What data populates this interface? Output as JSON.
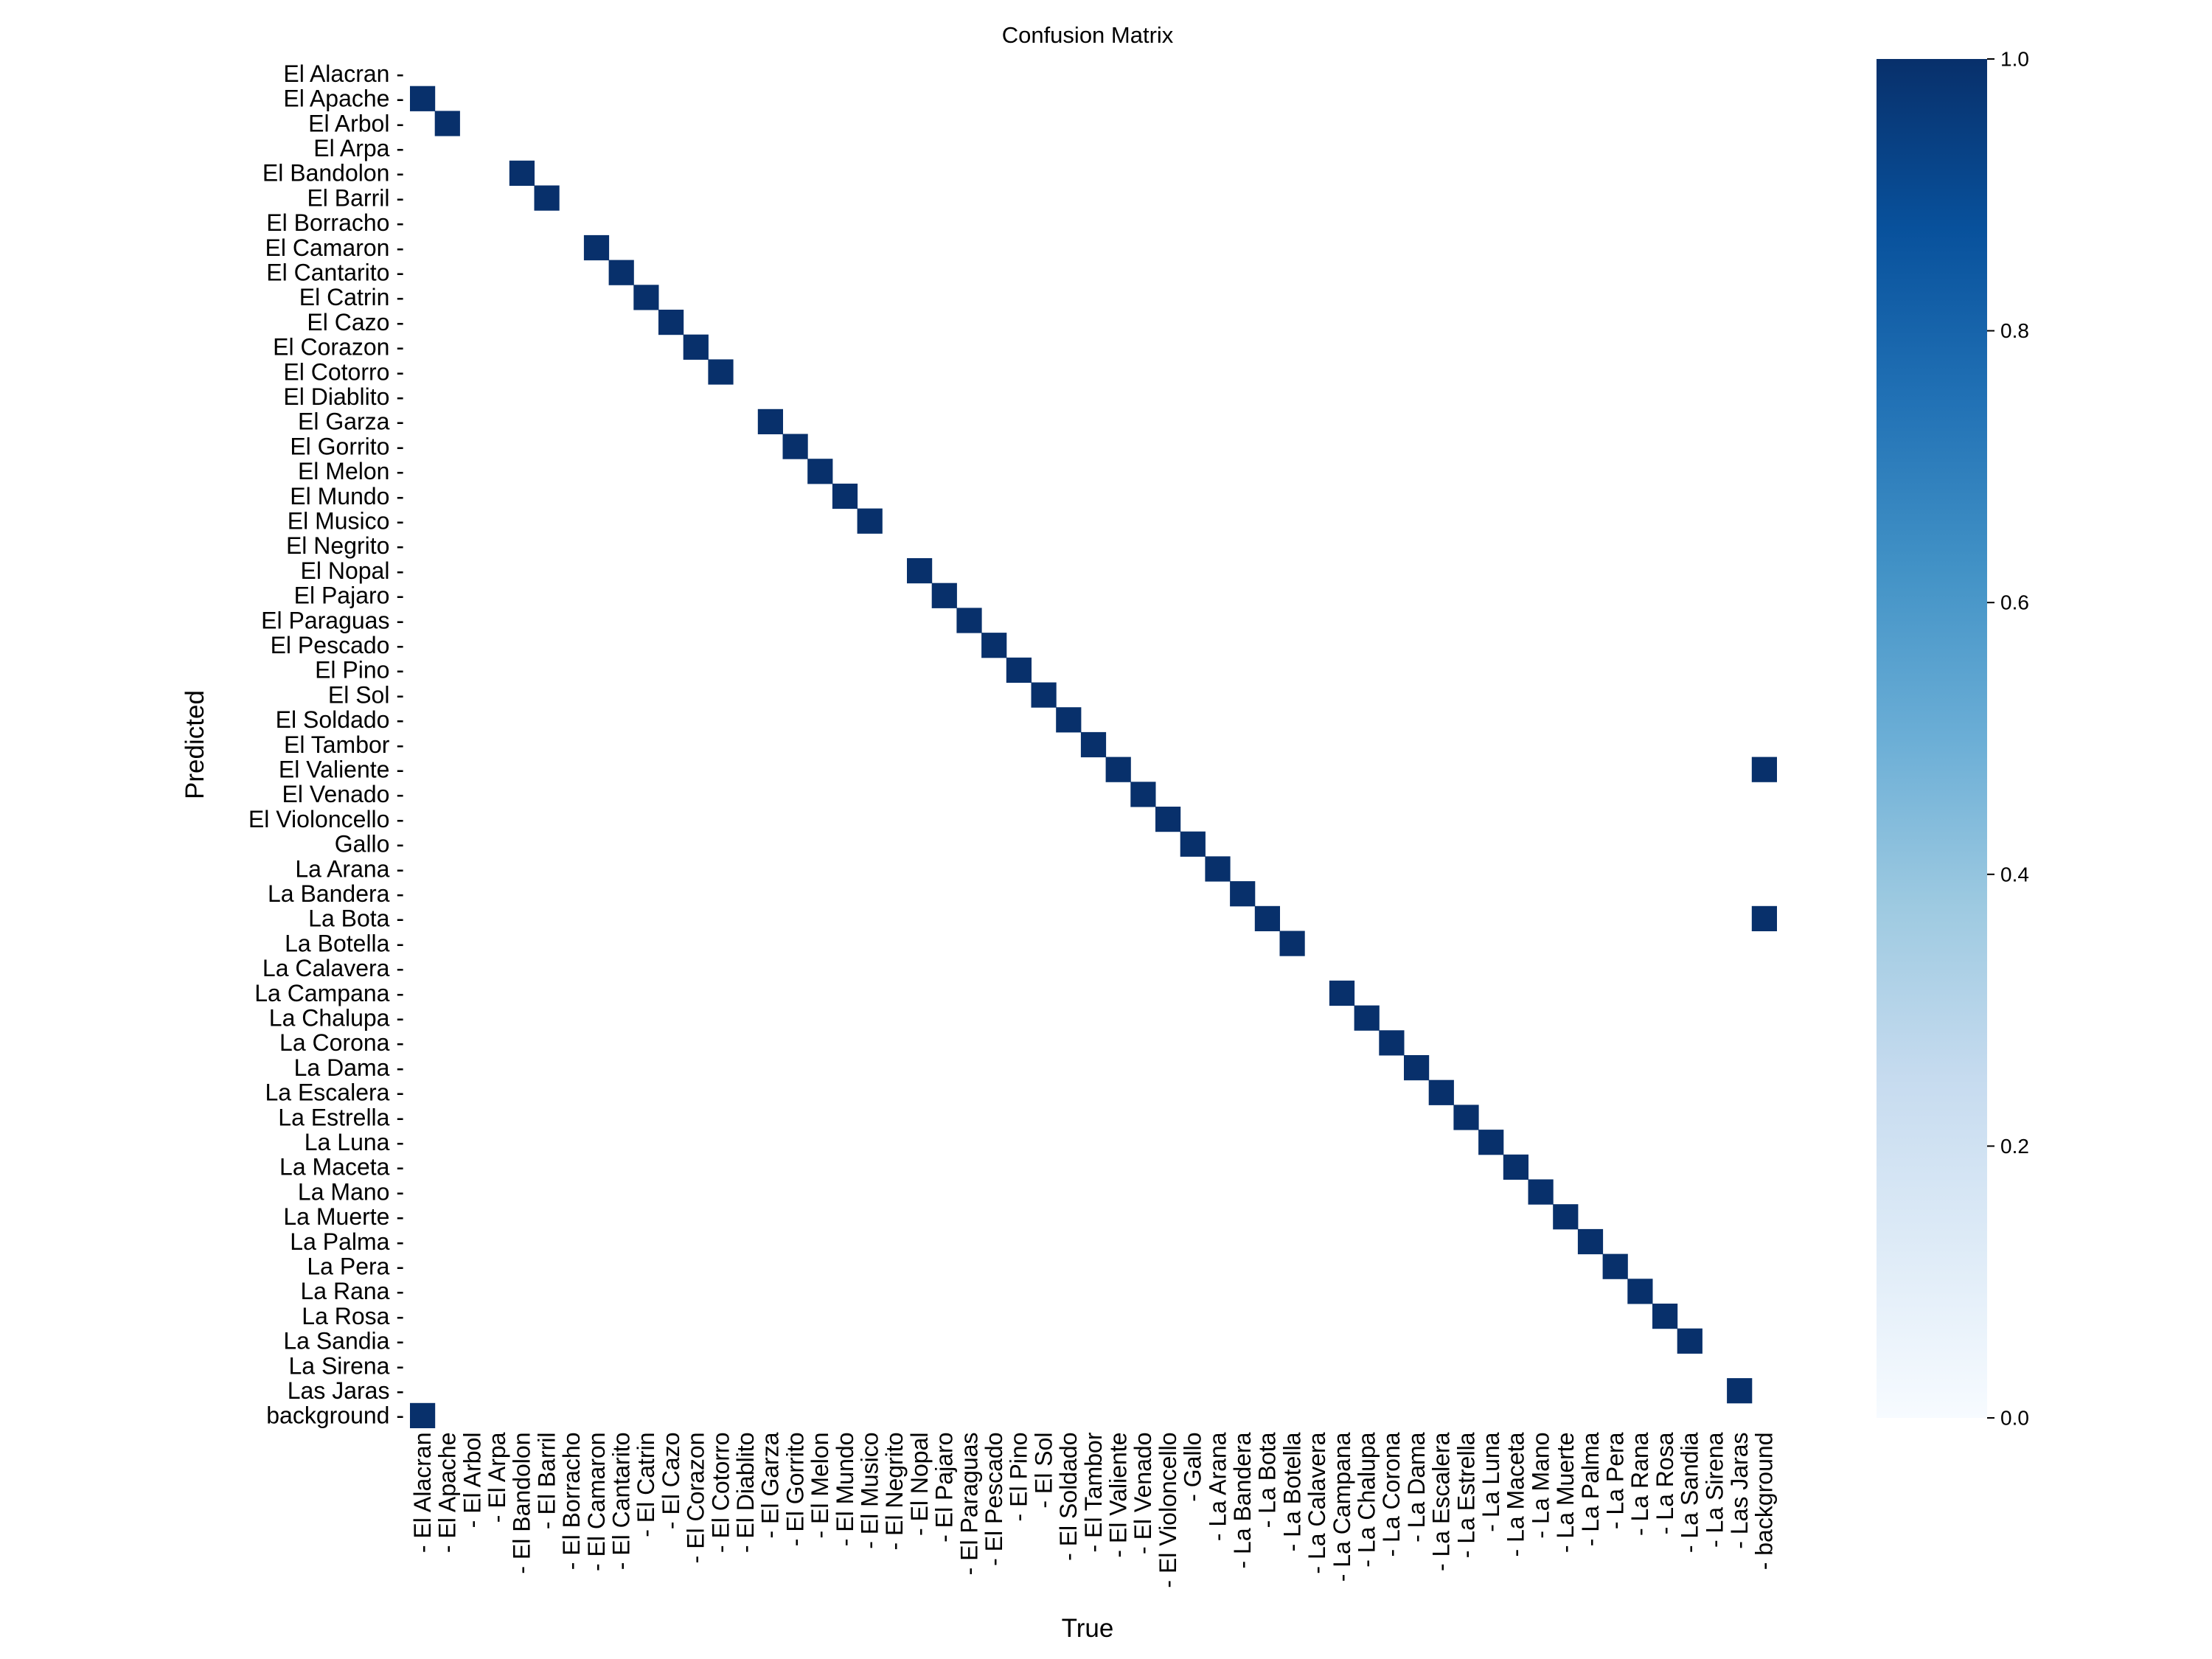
{
  "chart_data": {
    "type": "heatmap",
    "title": "Confusion Matrix",
    "xlabel": "True",
    "ylabel": "Predicted",
    "normalized": true,
    "colormap": "Blues",
    "colorbar": {
      "min": 0.0,
      "max": 1.0,
      "ticks": [
        "0.0",
        "0.2",
        "0.4",
        "0.6",
        "0.8",
        "1.0"
      ]
    },
    "cell_color_full": "#08306b",
    "cell_color_empty": "#ffffff",
    "labels": [
      "El Alacran",
      "El Apache",
      "El Arbol",
      "El Arpa",
      "El Bandolon",
      "El Barril",
      "El Borracho",
      "El Camaron",
      "El Cantarito",
      "El Catrin",
      "El Cazo",
      "El Corazon",
      "El Cotorro",
      "El Diablito",
      "El Garza",
      "El Gorrito",
      "El Melon",
      "El Mundo",
      "El Musico",
      "El Negrito",
      "El Nopal",
      "El Pajaro",
      "El Paraguas",
      "El Pescado",
      "El Pino",
      "El Sol",
      "El Soldado",
      "El Tambor",
      "El Valiente",
      "El Venado",
      "El Violoncello",
      "Gallo",
      "La Arana",
      "La Bandera",
      "La Bota",
      "La Botella",
      "La Calavera",
      "La Campana",
      "La Chalupa",
      "La Corona",
      "La Dama",
      "La Escalera",
      "La Estrella",
      "La Luna",
      "La Maceta",
      "La Mano",
      "La Muerte",
      "La Palma",
      "La Pera",
      "La Rana",
      "La Rosa",
      "La Sandia",
      "La Sirena",
      "Las Jaras",
      "background"
    ],
    "cells": [
      {
        "predicted": "El Apache",
        "true": "El Alacran",
        "value": 1.0
      },
      {
        "predicted": "El Arbol",
        "true": "El Apache",
        "value": 1.0
      },
      {
        "predicted": "El Bandolon",
        "true": "El Bandolon",
        "value": 1.0
      },
      {
        "predicted": "El Barril",
        "true": "El Barril",
        "value": 1.0
      },
      {
        "predicted": "El Camaron",
        "true": "El Camaron",
        "value": 1.0
      },
      {
        "predicted": "El Cantarito",
        "true": "El Cantarito",
        "value": 1.0
      },
      {
        "predicted": "El Catrin",
        "true": "El Catrin",
        "value": 1.0
      },
      {
        "predicted": "El Cazo",
        "true": "El Cazo",
        "value": 1.0
      },
      {
        "predicted": "El Corazon",
        "true": "El Corazon",
        "value": 1.0
      },
      {
        "predicted": "El Cotorro",
        "true": "El Cotorro",
        "value": 1.0
      },
      {
        "predicted": "El Garza",
        "true": "El Garza",
        "value": 1.0
      },
      {
        "predicted": "El Gorrito",
        "true": "El Gorrito",
        "value": 1.0
      },
      {
        "predicted": "El Melon",
        "true": "El Melon",
        "value": 1.0
      },
      {
        "predicted": "El Mundo",
        "true": "El Mundo",
        "value": 1.0
      },
      {
        "predicted": "El Musico",
        "true": "El Musico",
        "value": 1.0
      },
      {
        "predicted": "El Nopal",
        "true": "El Nopal",
        "value": 1.0
      },
      {
        "predicted": "El Pajaro",
        "true": "El Pajaro",
        "value": 1.0
      },
      {
        "predicted": "El Paraguas",
        "true": "El Paraguas",
        "value": 1.0
      },
      {
        "predicted": "El Pescado",
        "true": "El Pescado",
        "value": 1.0
      },
      {
        "predicted": "El Pino",
        "true": "El Pino",
        "value": 1.0
      },
      {
        "predicted": "El Sol",
        "true": "El Sol",
        "value": 1.0
      },
      {
        "predicted": "El Soldado",
        "true": "El Soldado",
        "value": 1.0
      },
      {
        "predicted": "El Tambor",
        "true": "El Tambor",
        "value": 1.0
      },
      {
        "predicted": "El Valiente",
        "true": "El Valiente",
        "value": 1.0
      },
      {
        "predicted": "El Valiente",
        "true": "background",
        "value": 1.0
      },
      {
        "predicted": "El Venado",
        "true": "El Venado",
        "value": 1.0
      },
      {
        "predicted": "El Violoncello",
        "true": "El Violoncello",
        "value": 1.0
      },
      {
        "predicted": "Gallo",
        "true": "Gallo",
        "value": 1.0
      },
      {
        "predicted": "La Arana",
        "true": "La Arana",
        "value": 1.0
      },
      {
        "predicted": "La Bandera",
        "true": "La Bandera",
        "value": 1.0
      },
      {
        "predicted": "La Bota",
        "true": "La Bota",
        "value": 1.0
      },
      {
        "predicted": "La Bota",
        "true": "background",
        "value": 1.0
      },
      {
        "predicted": "La Botella",
        "true": "La Botella",
        "value": 1.0
      },
      {
        "predicted": "La Campana",
        "true": "La Campana",
        "value": 1.0
      },
      {
        "predicted": "La Chalupa",
        "true": "La Chalupa",
        "value": 1.0
      },
      {
        "predicted": "La Corona",
        "true": "La Corona",
        "value": 1.0
      },
      {
        "predicted": "La Dama",
        "true": "La Dama",
        "value": 1.0
      },
      {
        "predicted": "La Escalera",
        "true": "La Escalera",
        "value": 1.0
      },
      {
        "predicted": "La Estrella",
        "true": "La Estrella",
        "value": 1.0
      },
      {
        "predicted": "La Luna",
        "true": "La Luna",
        "value": 1.0
      },
      {
        "predicted": "La Maceta",
        "true": "La Maceta",
        "value": 1.0
      },
      {
        "predicted": "La Mano",
        "true": "La Mano",
        "value": 1.0
      },
      {
        "predicted": "La Muerte",
        "true": "La Muerte",
        "value": 1.0
      },
      {
        "predicted": "La Palma",
        "true": "La Palma",
        "value": 1.0
      },
      {
        "predicted": "La Pera",
        "true": "La Pera",
        "value": 1.0
      },
      {
        "predicted": "La Rana",
        "true": "La Rana",
        "value": 1.0
      },
      {
        "predicted": "La Rosa",
        "true": "La Rosa",
        "value": 1.0
      },
      {
        "predicted": "La Sandia",
        "true": "La Sandia",
        "value": 1.0
      },
      {
        "predicted": "Las Jaras",
        "true": "Las Jaras",
        "value": 1.0
      },
      {
        "predicted": "background",
        "true": "El Alacran",
        "value": 1.0
      }
    ]
  }
}
